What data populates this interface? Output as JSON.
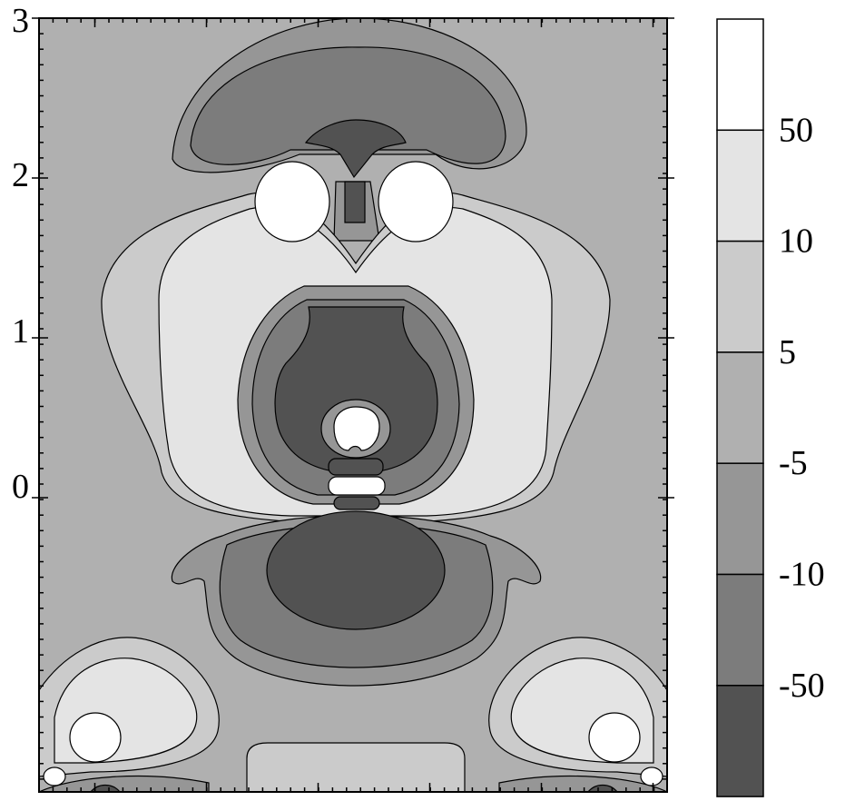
{
  "chart_data": {
    "type": "heatmap",
    "title": "",
    "xlabel": "",
    "ylabel": "",
    "y_tick_labels": [
      "3",
      "2",
      "1",
      "0"
    ],
    "y_tick_values": [
      3,
      2,
      1,
      0
    ],
    "ylim": [
      -1.95,
      3
    ],
    "x_tick_labels": [],
    "grid": false,
    "colorbar": {
      "boundaries": [
        -50,
        -10,
        -5,
        5,
        10,
        50
      ],
      "labels": [
        "50",
        "10",
        "5",
        "-5",
        "-10",
        "-50"
      ],
      "levels": [
        {
          "range": "> 50",
          "color": "#ffffff"
        },
        {
          "range": "10 to 50",
          "color": "#e4e4e4"
        },
        {
          "range": "5 to 10",
          "color": "#cbcbcb"
        },
        {
          "range": "-5 to 5",
          "color": "#b0b0b0"
        },
        {
          "range": "-10 to -5",
          "color": "#969696"
        },
        {
          "range": "-50 to -10",
          "color": "#7c7c7c"
        },
        {
          "range": "< -50",
          "color": "#525252"
        }
      ]
    },
    "colors": {
      "level_gt_50": "#ffffff",
      "level_10_50": "#e4e4e4",
      "level_5_10": "#cbcbcb",
      "level_m5_5": "#b0b0b0",
      "level_m10_m5": "#969696",
      "level_m50_m10": "#7c7c7c",
      "level_lt_m50": "#525252",
      "contour_line": "#000000"
    }
  }
}
